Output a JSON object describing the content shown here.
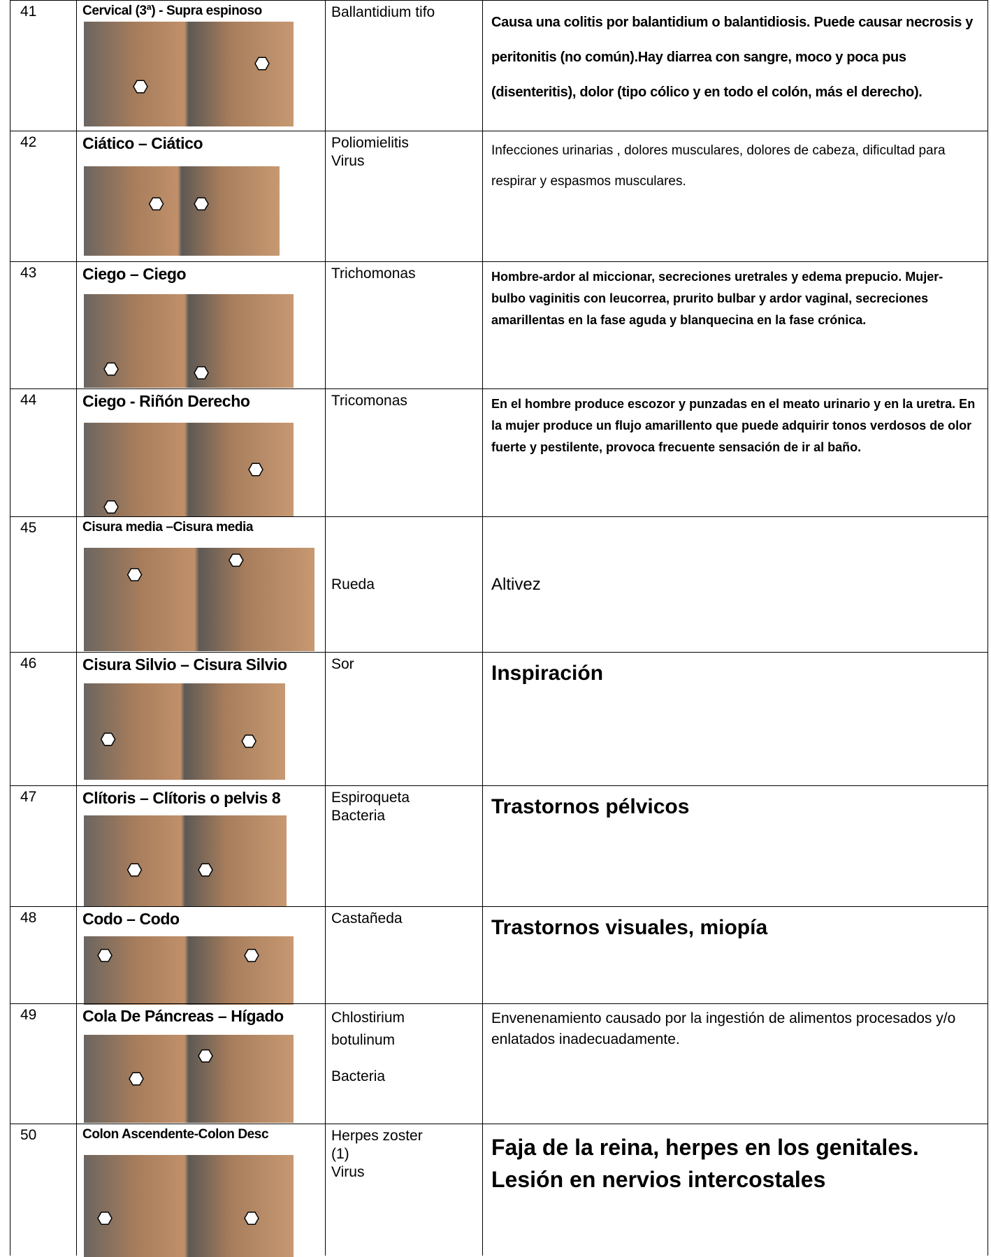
{
  "table": {
    "rows": [
      {
        "number": "41",
        "point": "Cervical (3ª) - Supra espinoso",
        "agent": [
          "Ballantidium tifo"
        ],
        "description": "Causa una colitis por balantidium o balantidiosis. Puede causar necrosis y peritonitis (no común).Hay diarrea con sangre, moco y poca pus (disenteritis), dolor (tipo cólico y en todo el colón, más el derecho)."
      },
      {
        "number": "42",
        "point": "Ciático – Ciático",
        "agent": [
          "Poliomielitis",
          "Virus"
        ],
        "description": "Infecciones urinarias , dolores musculares, dolores de cabeza, dificultad para respirar y espasmos musculares."
      },
      {
        "number": "43",
        "point": "Ciego – Ciego",
        "agent": [
          "Trichomonas"
        ],
        "description": "Hombre-ardor al miccionar, secreciones uretrales y edema prepucio. Mujer- bulbo vaginitis con leucorrea, prurito bulbar y ardor vaginal, secreciones amarillentas en la fase aguda y blanquecina en la fase crónica."
      },
      {
        "number": "44",
        "point": "Ciego - Riñón Derecho",
        "agent": [
          "Tricomonas"
        ],
        "description": "En el hombre produce escozor y punzadas en el meato urinario y en la uretra. En la mujer produce un flujo amarillento que puede adquirir tonos verdosos de olor fuerte y pestilente, provoca frecuente sensación de ir al baño."
      },
      {
        "number": "45",
        "point": "Cisura media –Cisura media",
        "agent": [
          "Rueda"
        ],
        "description": "Altivez"
      },
      {
        "number": "46",
        "point": "Cisura Silvio – Cisura Silvio",
        "agent": [
          "Sor"
        ],
        "description": "Inspiración"
      },
      {
        "number": "47",
        "point": "Clítoris – Clítoris o pelvis 8",
        "agent": [
          "Espiroqueta",
          "Bacteria"
        ],
        "description": "Trastornos pélvicos"
      },
      {
        "number": "48",
        "point": "Codo – Codo",
        "agent": [
          "Castañeda"
        ],
        "description": "Trastornos  visuales, miopía"
      },
      {
        "number": "49",
        "point": "Cola De Páncreas – Hígado",
        "agent": [
          "Chlostirium",
          "botulinum",
          "Bacteria"
        ],
        "description": "Envenenamiento causado por la ingestión de alimentos procesados y/o enlatados inadecuadamente."
      },
      {
        "number": "50",
        "point": "Colon Ascendente-Colon Desc",
        "agent": [
          "Herpes zoster",
          "(1)",
          "Virus"
        ],
        "description": "Faja de la reina, herpes en los genitales. Lesión en nervios intercostales"
      }
    ]
  }
}
